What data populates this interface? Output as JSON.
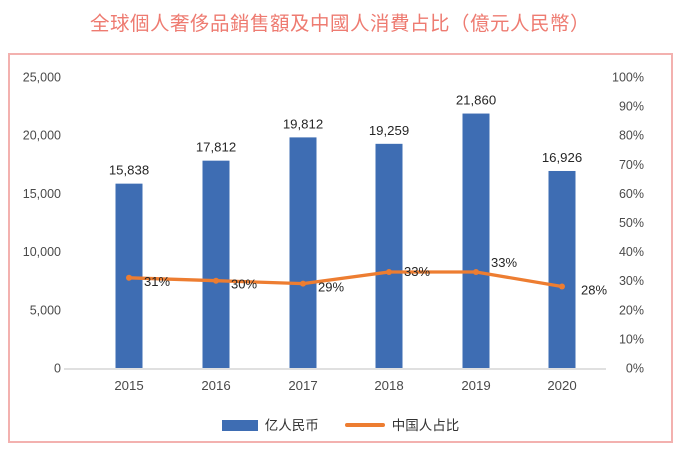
{
  "title": "全球個人奢侈品銷售額及中國人消費占比（億元人民幣）",
  "colors": {
    "title": "#ee7b71",
    "box_border": "#f3b1af",
    "bar": "#3e6db3",
    "line": "#ed7d31",
    "axis_text": "#4a4a4a",
    "data_label": "#262626",
    "axis_line": "#d6d6d6"
  },
  "chart_data": {
    "type": "combo-bar-line",
    "title": "全球個人奢侈品銷售額及中國人消費占比（億元人民幣）",
    "categories": [
      "2015",
      "2016",
      "2017",
      "2018",
      "2019",
      "2020"
    ],
    "series": [
      {
        "name": "亿人民币",
        "type": "bar",
        "axis": "left",
        "values": [
          15838,
          17812,
          19812,
          19259,
          21860,
          16926
        ],
        "labels": [
          "15,838",
          "17,812",
          "19,812",
          "19,259",
          "21,860",
          "16,926"
        ]
      },
      {
        "name": "中国人占比",
        "type": "line",
        "axis": "right",
        "values": [
          31,
          30,
          29,
          33,
          33,
          28
        ],
        "labels": [
          "31%",
          "30%",
          "29%",
          "33%",
          "33%",
          "28%"
        ]
      }
    ],
    "left_axis": {
      "min": 0,
      "max": 25000,
      "step": 5000,
      "tick_labels": [
        "0",
        "5,000",
        "10,000",
        "15,000",
        "20,000",
        "25,000"
      ]
    },
    "right_axis": {
      "min": 0,
      "max": 100,
      "step": 10,
      "tick_labels": [
        "0%",
        "10%",
        "20%",
        "30%",
        "40%",
        "50%",
        "60%",
        "70%",
        "80%",
        "90%",
        "100%"
      ]
    },
    "grid": false,
    "legend_position": "bottom"
  }
}
